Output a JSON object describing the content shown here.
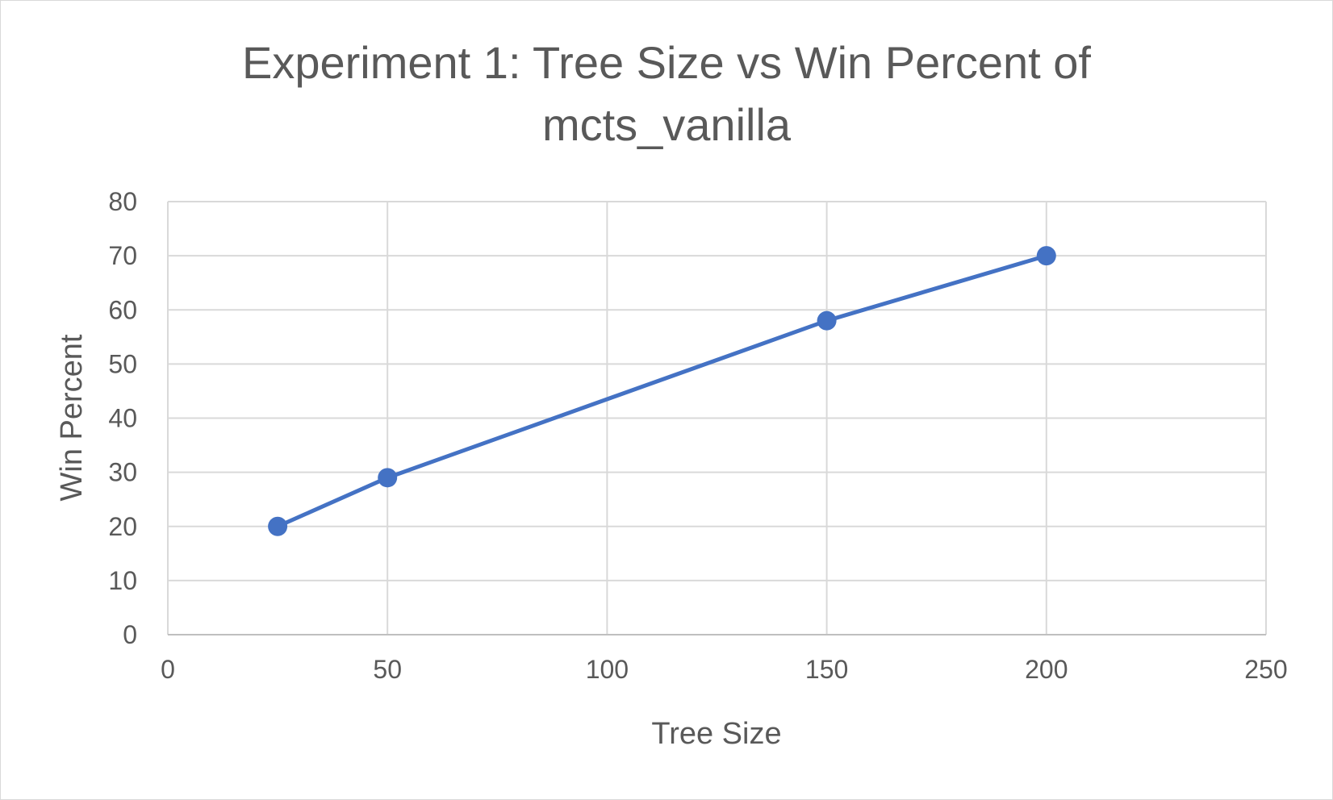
{
  "chart_data": {
    "type": "scatter",
    "title_lines": [
      "Experiment 1: Tree Size vs Win Percent of",
      "mcts_vanilla"
    ],
    "xlabel": "Tree Size",
    "ylabel": "Win Percent",
    "xlim": [
      0,
      250
    ],
    "ylim": [
      0,
      80
    ],
    "xticks": [
      0,
      50,
      100,
      150,
      200,
      250
    ],
    "yticks": [
      0,
      10,
      20,
      30,
      40,
      50,
      60,
      70,
      80
    ],
    "grid": true,
    "legend": "none",
    "series": [
      {
        "color": "#4472c4",
        "points": [
          {
            "x": 25,
            "y": 20
          },
          {
            "x": 50,
            "y": 29
          },
          {
            "x": 150,
            "y": 58
          },
          {
            "x": 200,
            "y": 70
          }
        ]
      }
    ]
  }
}
